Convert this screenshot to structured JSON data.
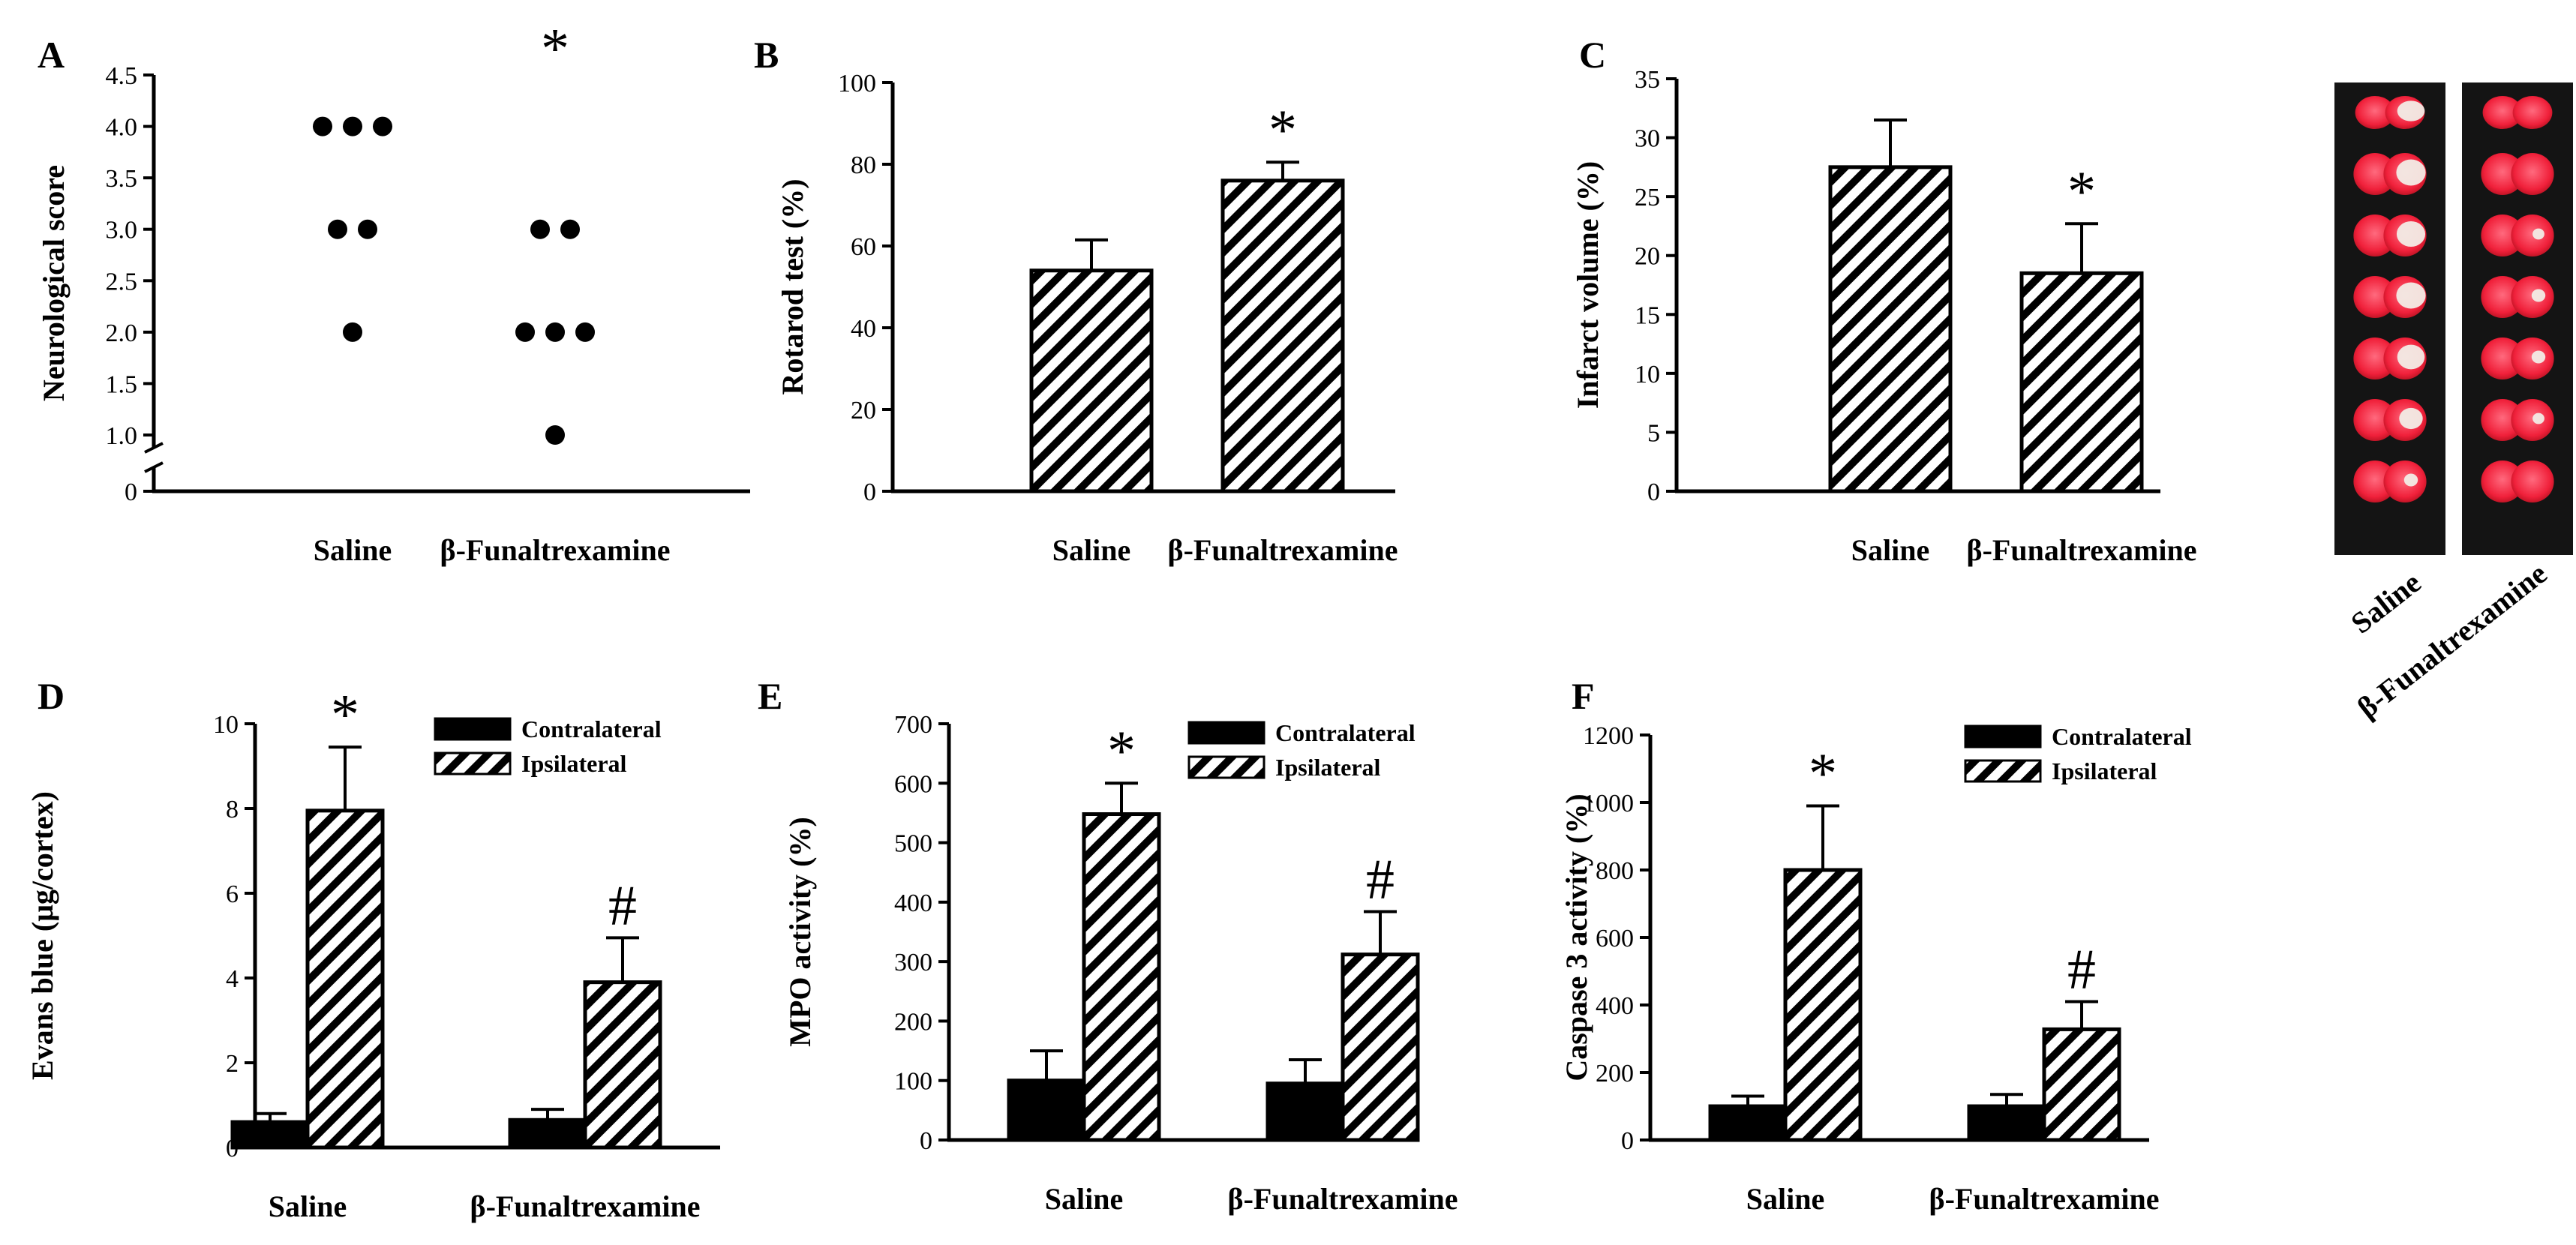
{
  "chart_data": [
    {
      "panel": "A",
      "type": "scatter",
      "ylabel": "Neurological score",
      "ylim": [
        0,
        4.5
      ],
      "y_ticks": [
        "0",
        "1.0",
        "1.5",
        "2.0",
        "2.5",
        "3.0",
        "3.5",
        "4.0",
        "4.5"
      ],
      "axis_break": true,
      "categories": [
        "Saline",
        "β-Funaltrexamine"
      ],
      "series": [
        {
          "name": "Saline",
          "values": [
            4,
            4,
            4,
            3,
            3,
            2
          ]
        },
        {
          "name": "β-Funaltrexamine",
          "values": [
            3,
            3,
            2,
            2,
            2,
            1
          ]
        }
      ],
      "annotations": [
        {
          "category": "β-Funaltrexamine",
          "text": "*"
        }
      ]
    },
    {
      "panel": "B",
      "type": "bar",
      "ylabel": "Rotarod test (%)",
      "ylim": [
        0,
        100
      ],
      "y_ticks": [
        "0",
        "20",
        "40",
        "60",
        "80",
        "100"
      ],
      "categories": [
        "Saline",
        "β-Funaltrexamine"
      ],
      "values": [
        54,
        76
      ],
      "errors": [
        7.5,
        4.5
      ],
      "annotations": [
        {
          "category": "β-Funaltrexamine",
          "text": "*"
        }
      ]
    },
    {
      "panel": "C",
      "type": "bar",
      "ylabel": "Infarct volume (%)",
      "ylim": [
        0,
        35
      ],
      "y_ticks": [
        "0",
        "5",
        "10",
        "15",
        "20",
        "25",
        "30",
        "35"
      ],
      "categories": [
        "Saline",
        "β-Funaltrexamine"
      ],
      "values": [
        27.5,
        18.5
      ],
      "errors": [
        4,
        4.2
      ],
      "annotations": [
        {
          "category": "β-Funaltrexamine",
          "text": "*"
        }
      ],
      "image_labels": [
        "Saline",
        "β-Funaltrexamine"
      ]
    },
    {
      "panel": "D",
      "type": "bar",
      "ylabel": "Evans blue (μg/cortex)",
      "ylim": [
        0,
        10
      ],
      "y_ticks": [
        "0",
        "2",
        "4",
        "6",
        "8",
        "10"
      ],
      "categories": [
        "Saline",
        "β-Funaltrexamine"
      ],
      "legend": [
        "Contralateral",
        "Ipsilateral"
      ],
      "series": [
        {
          "name": "Contralateral",
          "values": [
            0.6,
            0.65
          ],
          "errors": [
            0.2,
            0.25
          ]
        },
        {
          "name": "Ipsilateral",
          "values": [
            7.95,
            3.9
          ],
          "errors": [
            1.5,
            1.05
          ]
        }
      ],
      "annotations": [
        {
          "category": "Saline",
          "text": "*"
        },
        {
          "category": "β-Funaltrexamine",
          "text": "#"
        }
      ]
    },
    {
      "panel": "E",
      "type": "bar",
      "ylabel": "MPO activity (%)",
      "ylim": [
        0,
        700
      ],
      "y_ticks": [
        "0",
        "100",
        "200",
        "300",
        "400",
        "500",
        "600",
        "700"
      ],
      "categories": [
        "Saline",
        "β-Funaltrexamine"
      ],
      "legend": [
        "Contralateral",
        "Ipsilateral"
      ],
      "series": [
        {
          "name": "Contralateral",
          "values": [
            100,
            95
          ],
          "errors": [
            50,
            40
          ]
        },
        {
          "name": "Ipsilateral",
          "values": [
            548,
            312
          ],
          "errors": [
            52,
            72
          ]
        }
      ],
      "annotations": [
        {
          "category": "Saline",
          "text": "*"
        },
        {
          "category": "β-Funaltrexamine",
          "text": "#"
        }
      ]
    },
    {
      "panel": "F",
      "type": "bar",
      "ylabel": "Caspase 3 activity (%)",
      "ylim": [
        0,
        1200
      ],
      "y_ticks": [
        "0",
        "200",
        "400",
        "600",
        "800",
        "1000",
        "1200"
      ],
      "categories": [
        "Saline",
        "β-Funaltrexamine"
      ],
      "legend": [
        "Contralateral",
        "Ipsilateral"
      ],
      "series": [
        {
          "name": "Contralateral",
          "values": [
            100,
            100
          ],
          "errors": [
            30,
            35
          ]
        },
        {
          "name": "Ipsilateral",
          "values": [
            800,
            328
          ],
          "errors": [
            190,
            82
          ]
        }
      ],
      "annotations": [
        {
          "category": "Saline",
          "text": "*"
        },
        {
          "category": "β-Funaltrexamine",
          "text": "#"
        }
      ]
    }
  ]
}
